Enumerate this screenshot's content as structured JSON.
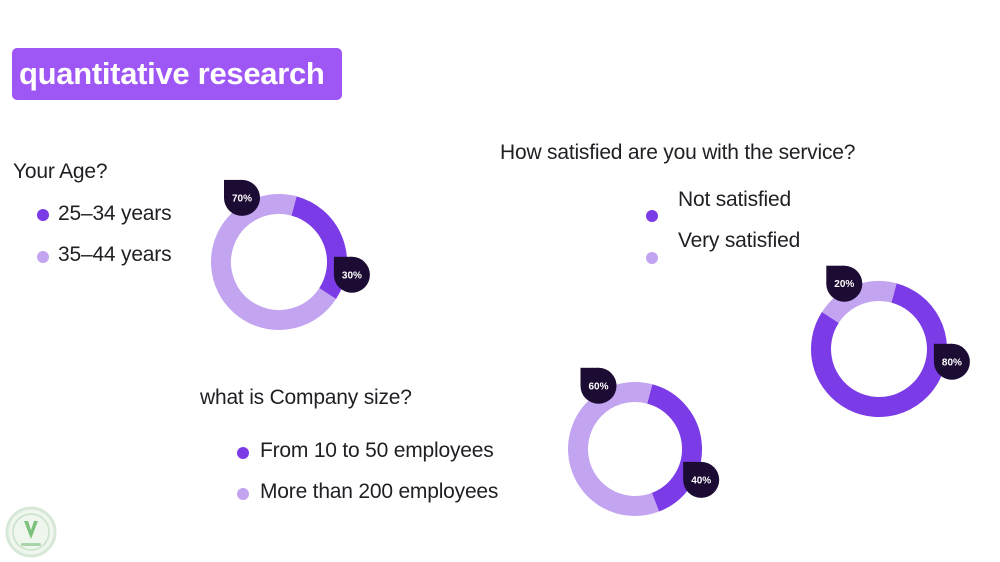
{
  "title": "quantitative research",
  "colors": {
    "accent": "#9e57f5",
    "dark_slice": "#7b3be6",
    "light_slice": "#c3a4f0",
    "label_bg": "#1c0b33",
    "label_text": "#ffffff"
  },
  "charts": [
    {
      "question": "Your Age?",
      "legend": [
        "25–34 years",
        "35–44 years"
      ]
    },
    {
      "question": "How satisfied are you with the service?",
      "legend": [
        "Not satisfied",
        "Very satisfied"
      ]
    },
    {
      "question": "what is Company size?",
      "legend": [
        "From 10 to 50 employees",
        "More than 200 employees"
      ]
    }
  ],
  "chart_data": [
    {
      "type": "pie",
      "categories": [
        "25–34 years",
        "35–44 years"
      ],
      "values": [
        30,
        70
      ],
      "labels": [
        "30%",
        "70%"
      ]
    },
    {
      "type": "pie",
      "categories": [
        "Not satisfied",
        "Very satisfied"
      ],
      "values": [
        80,
        20
      ],
      "labels": [
        "80%",
        "20%"
      ]
    },
    {
      "type": "pie",
      "categories": [
        "From 10 to 50 employees",
        "More than 200 employees"
      ],
      "values": [
        40,
        60
      ],
      "labels": [
        "40%",
        "60%"
      ]
    }
  ]
}
